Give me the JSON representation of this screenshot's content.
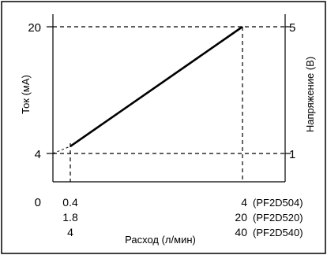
{
  "chart_data": {
    "type": "line",
    "xlabel": "Расход (л/мин)",
    "ylabel_left": "Ток (мА)",
    "ylabel_right": "Напряжение (В)",
    "left_axis": {
      "ticks": [
        "4",
        "20"
      ],
      "range": [
        4,
        20
      ]
    },
    "right_axis": {
      "ticks": [
        "1",
        "5"
      ],
      "range": [
        1,
        5
      ]
    },
    "x_axis": {
      "origin_label": "0",
      "scale_rows": [
        {
          "min": "0.4",
          "max": "4",
          "model": "(PF2D504)"
        },
        {
          "min": "1.8",
          "max": "20",
          "model": "(PF2D520)"
        },
        {
          "min": "4",
          "max": "40",
          "model": "(PF2D540)"
        }
      ]
    },
    "series": [
      {
        "points": [
          {
            "x": 0.4,
            "y": 4.9
          },
          {
            "x": 4,
            "y": 20
          }
        ]
      }
    ],
    "extrapolation": [
      {
        "x": 0,
        "y": 4
      },
      {
        "x": 0.4,
        "y": 4.9
      }
    ],
    "grid": "dashed reference lines at y=4, y=20, x=0.4 and x=4"
  }
}
